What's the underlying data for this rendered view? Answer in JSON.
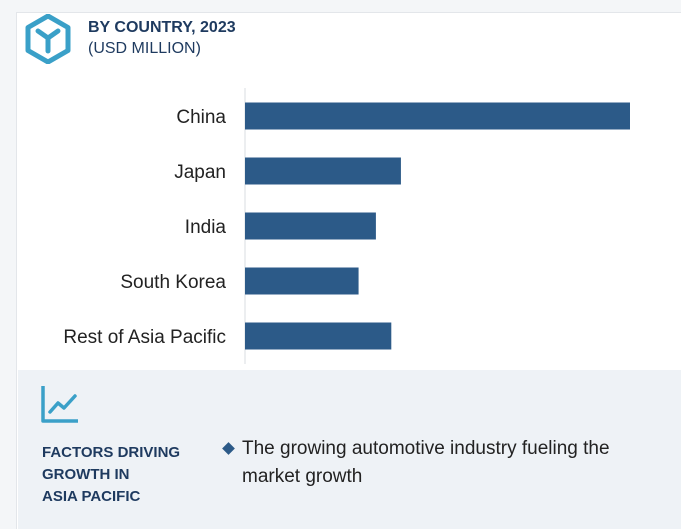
{
  "header": {
    "title": "BY COUNTRY, 2023",
    "subtitle": "(USD MILLION)",
    "logo_icon": "cube-y-icon"
  },
  "chart_data": {
    "type": "bar",
    "orientation": "horizontal",
    "categories": [
      "China",
      "Japan",
      "India",
      "South Korea",
      "Rest of Asia Pacific"
    ],
    "series": [
      {
        "values": [
          100,
          40.5,
          34,
          29.5,
          38
        ]
      }
    ],
    "xlim": [
      0,
      100
    ],
    "grid": false,
    "legend": "none",
    "bar_color": "#2c5a88"
  },
  "factors": {
    "icon": "trend-line-icon",
    "title_lines": [
      "FACTORS DRIVING",
      "GROWTH IN",
      "ASIA PACIFIC"
    ],
    "items": [
      "The growing automotive industry fueling the market growth"
    ]
  },
  "colors": {
    "accent": "#2c5a88",
    "title": "#1e3a5f",
    "logo": "#3aa0c8"
  }
}
